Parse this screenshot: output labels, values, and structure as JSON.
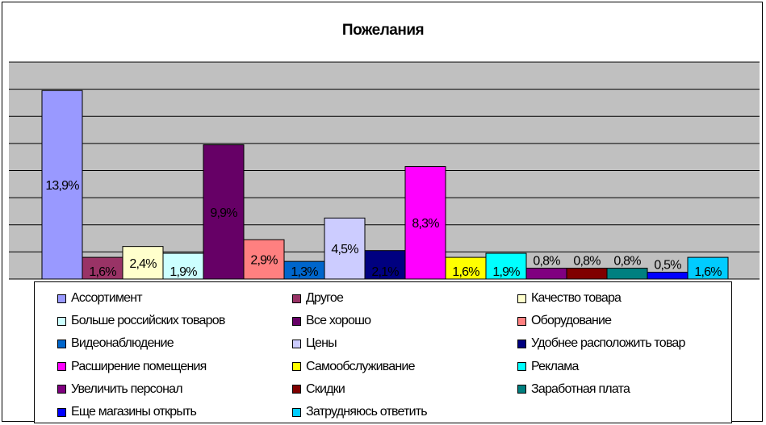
{
  "chart_data": {
    "type": "bar",
    "title": "Пожелания",
    "xlabel": "",
    "ylabel": "",
    "ylim": [
      0,
      16
    ],
    "grid": true,
    "legend_position": "bottom",
    "series": [
      {
        "name": "Ассортимент",
        "value": 13.9,
        "label": "13,9%",
        "color": "#9999ff"
      },
      {
        "name": "Другое",
        "value": 1.6,
        "label": "1,6%",
        "color": "#993366"
      },
      {
        "name": "Качество товара",
        "value": 2.4,
        "label": "2,4%",
        "color": "#ffffcc"
      },
      {
        "name": "Больше российских товаров",
        "value": 1.9,
        "label": "1,9%",
        "color": "#ccffff"
      },
      {
        "name": "Все хорошо",
        "value": 9.9,
        "label": "9,9%",
        "color": "#660066"
      },
      {
        "name": "Оборудование",
        "value": 2.9,
        "label": "2,9%",
        "color": "#ff8080"
      },
      {
        "name": "Видеонаблюдение",
        "value": 1.3,
        "label": "1,3%",
        "color": "#0066cc"
      },
      {
        "name": "Цены",
        "value": 4.5,
        "label": "4,5%",
        "color": "#ccccff"
      },
      {
        "name": "Удобнее расположить товар",
        "value": 2.1,
        "label": "2,1%",
        "color": "#000080"
      },
      {
        "name": "Расширение помещения",
        "value": 8.3,
        "label": "8,3%",
        "color": "#ff00ff"
      },
      {
        "name": "Самообслуживание",
        "value": 1.6,
        "label": "1,6%",
        "color": "#ffff00"
      },
      {
        "name": "Реклама",
        "value": 1.9,
        "label": "1,9%",
        "color": "#00ffff"
      },
      {
        "name": "Увеличить персонал",
        "value": 0.8,
        "label": "0,8%",
        "color": "#800080"
      },
      {
        "name": "Скидки",
        "value": 0.8,
        "label": "0,8%",
        "color": "#800000"
      },
      {
        "name": "Заработная плата",
        "value": 0.8,
        "label": "0,8%",
        "color": "#008080"
      },
      {
        "name": "Еще магазины открыть",
        "value": 0.5,
        "label": "0,5%",
        "color": "#0000ff"
      },
      {
        "name": "Затрудняюсь ответить",
        "value": 1.6,
        "label": "1,6%",
        "color": "#00ccff"
      }
    ]
  }
}
